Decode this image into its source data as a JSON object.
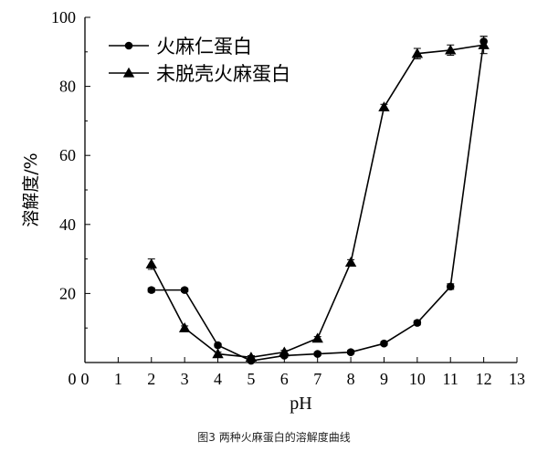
{
  "chart_data": {
    "type": "line",
    "caption": "图3 两种火麻蛋白的溶解度曲线",
    "xlabel": "pH",
    "ylabel": "溶解度/%",
    "xlim": [
      0,
      13
    ],
    "ylim": [
      0,
      100
    ],
    "xticks": [
      0,
      1,
      2,
      3,
      4,
      5,
      6,
      7,
      8,
      9,
      10,
      11,
      12,
      13
    ],
    "yticks": [
      20,
      40,
      60,
      80,
      100
    ],
    "grid": false,
    "legend_position": "top-left",
    "series": [
      {
        "name": "火麻仁蛋白",
        "marker": "circle",
        "color": "#000000",
        "x": [
          2,
          3,
          4,
          5,
          6,
          7,
          8,
          9,
          10,
          11,
          12
        ],
        "y": [
          21,
          21,
          5,
          0.5,
          2,
          2.5,
          3,
          5.5,
          11.5,
          22,
          93
        ],
        "err": [
          0.6,
          0.5,
          0.5,
          0.5,
          0.5,
          0.5,
          0.5,
          0.5,
          0.6,
          0.8,
          1.5
        ]
      },
      {
        "name": "未脱壳火麻蛋白",
        "marker": "triangle",
        "color": "#000000",
        "x": [
          2,
          3,
          4,
          5,
          6,
          7,
          8,
          9,
          10,
          11,
          12
        ],
        "y": [
          28.5,
          10,
          2.5,
          1.5,
          3,
          7,
          29,
          74,
          89.5,
          90.5,
          92
        ],
        "err": [
          1.5,
          0.6,
          0.5,
          0.5,
          0.5,
          0.5,
          0.8,
          0.8,
          1.5,
          1.5,
          2.5
        ]
      }
    ]
  }
}
